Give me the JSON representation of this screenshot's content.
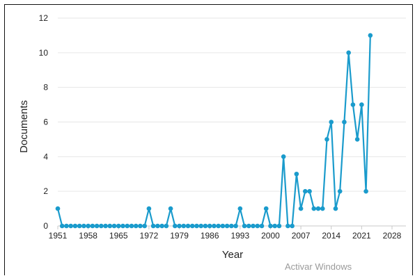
{
  "watermark": "Activar Windows",
  "chart_data": {
    "type": "line",
    "title": "",
    "xlabel": "Year",
    "ylabel": "Documents",
    "xlim": [
      1951,
      2028
    ],
    "ylim": [
      0,
      12
    ],
    "x_ticks": [
      1951,
      1958,
      1965,
      1972,
      1979,
      1986,
      1993,
      2000,
      2007,
      2014,
      2021,
      2028
    ],
    "y_ticks": [
      0,
      2,
      4,
      6,
      8,
      10,
      12
    ],
    "grid": "horizontal",
    "color": "#1a9bcc",
    "x": [
      1951,
      1952,
      1953,
      1954,
      1955,
      1956,
      1957,
      1958,
      1959,
      1960,
      1961,
      1962,
      1963,
      1964,
      1965,
      1966,
      1967,
      1968,
      1969,
      1970,
      1971,
      1972,
      1973,
      1974,
      1975,
      1976,
      1977,
      1978,
      1979,
      1980,
      1981,
      1982,
      1983,
      1984,
      1985,
      1986,
      1987,
      1988,
      1989,
      1990,
      1991,
      1992,
      1993,
      1994,
      1995,
      1996,
      1997,
      1998,
      1999,
      2000,
      2001,
      2002,
      2003,
      2004,
      2005,
      2006,
      2007,
      2008,
      2009,
      2010,
      2011,
      2012,
      2013,
      2014,
      2015,
      2016,
      2017,
      2018,
      2019,
      2020,
      2021,
      2022,
      2023
    ],
    "y": [
      1,
      0,
      0,
      0,
      0,
      0,
      0,
      0,
      0,
      0,
      0,
      0,
      0,
      0,
      0,
      0,
      0,
      0,
      0,
      0,
      0,
      1,
      0,
      0,
      0,
      0,
      1,
      0,
      0,
      0,
      0,
      0,
      0,
      0,
      0,
      0,
      0,
      0,
      0,
      0,
      0,
      0,
      1,
      0,
      0,
      0,
      0,
      0,
      1,
      0,
      0,
      0,
      4,
      0,
      0,
      3,
      1,
      2,
      2,
      1,
      1,
      1,
      5,
      6,
      1,
      2,
      6,
      10,
      7,
      5,
      7,
      2,
      11
    ]
  }
}
